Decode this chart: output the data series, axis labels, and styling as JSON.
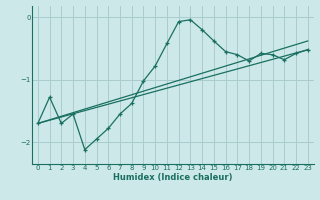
{
  "xlabel": "Humidex (Indice chaleur)",
  "bg_color": "#cce8e8",
  "grid_color": "#aacccc",
  "line_color": "#1a7060",
  "xlim": [
    -0.5,
    23.5
  ],
  "ylim": [
    -2.35,
    0.18
  ],
  "yticks": [
    0,
    -1,
    -2
  ],
  "xticks": [
    0,
    1,
    2,
    3,
    4,
    5,
    6,
    7,
    8,
    9,
    10,
    11,
    12,
    13,
    14,
    15,
    16,
    17,
    18,
    19,
    20,
    21,
    22,
    23
  ],
  "curve_x": [
    0,
    1,
    2,
    3,
    4,
    5,
    6,
    7,
    8,
    9,
    10,
    11,
    12,
    13,
    14,
    15,
    16,
    17,
    18,
    19,
    20,
    21,
    22,
    23
  ],
  "curve_y": [
    -1.7,
    -1.28,
    -1.7,
    -1.55,
    -2.12,
    -1.95,
    -1.78,
    -1.55,
    -1.38,
    -1.02,
    -0.78,
    -0.42,
    -0.07,
    -0.04,
    -0.2,
    -0.38,
    -0.55,
    -0.6,
    -0.7,
    -0.58,
    -0.6,
    -0.68,
    -0.58,
    -0.52
  ],
  "line1_x": [
    0,
    23
  ],
  "line1_y": [
    -1.7,
    -0.52
  ],
  "line2_x": [
    0,
    23
  ],
  "line2_y": [
    -1.7,
    -0.38
  ]
}
